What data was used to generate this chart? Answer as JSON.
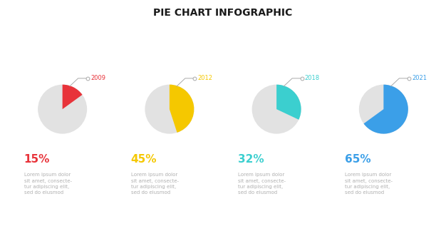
{
  "title": "PIE CHART INFOGRAPHIC",
  "title_fontsize": 10,
  "title_color": "#1a1a1a",
  "title_letterspacing": 2,
  "background_color": "#ffffff",
  "charts": [
    {
      "year": "2009",
      "pct": 15,
      "color": "#e8333a",
      "year_color": "#e8333a",
      "pct_color": "#e8333a",
      "bg_color": "#e2e2e2"
    },
    {
      "year": "2012",
      "pct": 45,
      "color": "#f5c800",
      "year_color": "#f5c800",
      "pct_color": "#f5c800",
      "bg_color": "#e2e2e2"
    },
    {
      "year": "2018",
      "pct": 32,
      "color": "#3bcfcf",
      "year_color": "#3bcfcf",
      "pct_color": "#3bcfcf",
      "bg_color": "#e2e2e2"
    },
    {
      "year": "2021",
      "pct": 65,
      "color": "#3b9fe8",
      "year_color": "#3b9fe8",
      "pct_color": "#3b9fe8",
      "bg_color": "#e2e2e2"
    }
  ],
  "lorem_text": "Lorem ipsum dolor\nsit amet, consecte-\ntur adipiscing elit,\nsed do eiusmod",
  "lorem_color": "#b0b0b0",
  "lorem_fontsize": 5.0,
  "pct_fontsize": 11,
  "line_color": "#aaaaaa",
  "circle_color": "#ffffff",
  "circle_edge_color": "#aaaaaa"
}
